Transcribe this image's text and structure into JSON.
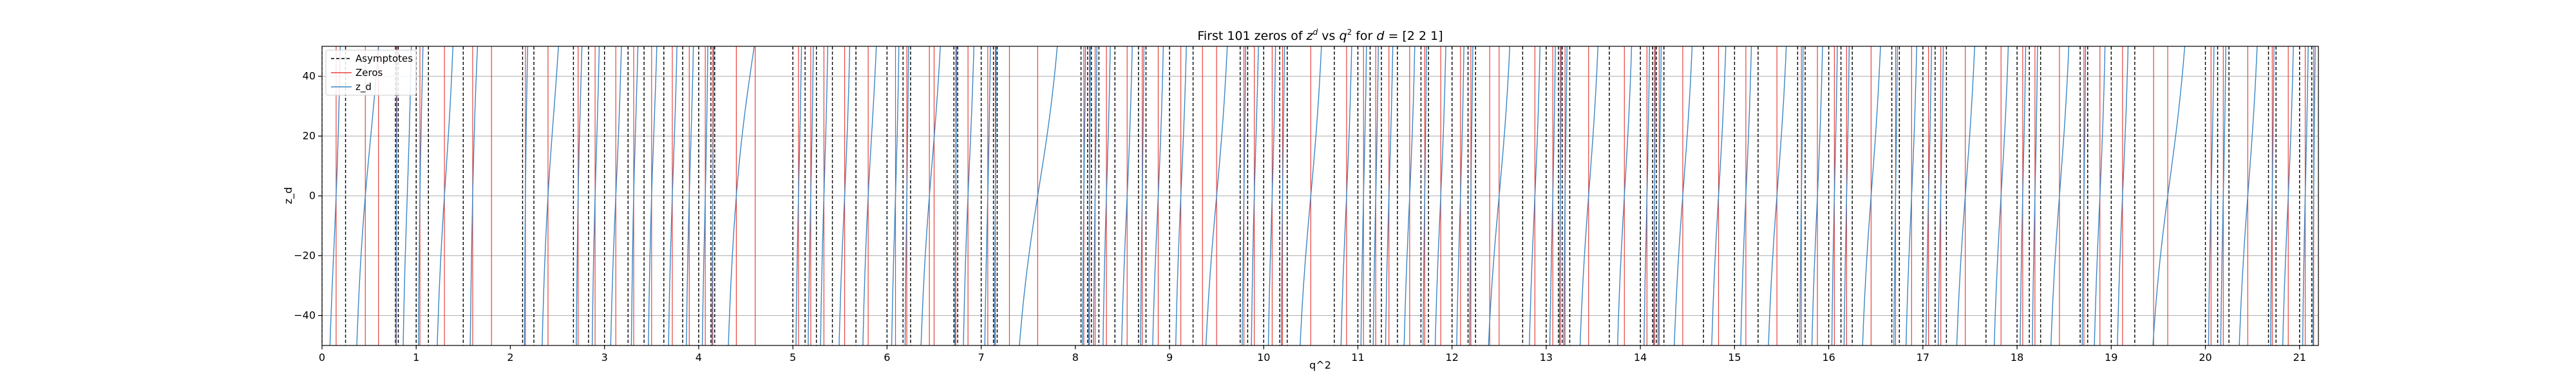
{
  "chart_data": {
    "type": "line",
    "title_parts": [
      "First 101 zeros of ",
      "z",
      "d",
      " vs ",
      "q",
      "2",
      " for ",
      "d",
      " = [2 2 1]"
    ],
    "xlabel": "q^2",
    "ylabel": "z_d",
    "xlim": [
      0,
      21.2
    ],
    "ylim": [
      -50,
      50
    ],
    "xticks": [
      0,
      1,
      2,
      3,
      4,
      5,
      6,
      7,
      8,
      9,
      10,
      11,
      12,
      13,
      14,
      15,
      16,
      17,
      18,
      19,
      20,
      21
    ],
    "yticks": [
      -40,
      -20,
      0,
      20,
      40
    ],
    "grid": true,
    "legend_position": "top-left",
    "legend": [
      {
        "label": "Asymptotes",
        "style": "dashed",
        "color": "#000000"
      },
      {
        "label": "Zeros",
        "style": "solid",
        "color": "#e8413b"
      },
      {
        "label": "z_d",
        "style": "solid",
        "color": "#3b86c4"
      }
    ],
    "asymptotes": [
      0,
      0.25,
      0.78,
      0.81,
      1.0,
      1.13,
      1.5,
      2.13,
      2.25,
      2.67,
      2.83,
      3.0,
      3.25,
      3.42,
      3.63,
      3.83,
      4.0,
      4.13,
      4.17,
      5.0,
      5.13,
      5.25,
      5.42,
      5.67,
      6.0,
      6.17,
      6.25,
      6.71,
      6.75,
      7.0,
      7.13,
      7.17,
      8.06,
      8.13,
      8.17,
      8.25,
      8.42,
      8.67,
      8.75,
      9.0,
      9.25,
      9.75,
      9.83,
      10.0,
      10.17,
      10.25,
      10.75,
      11.0,
      11.13,
      11.25,
      11.42,
      11.67,
      11.75,
      12.0,
      12.17,
      12.25,
      12.75,
      13.0,
      13.13,
      13.17,
      13.25,
      13.67,
      14.0,
      14.13,
      14.17,
      14.25,
      14.67,
      15.0,
      15.25,
      15.67,
      15.75,
      16.0,
      16.13,
      16.25,
      16.67,
      16.75,
      17.0,
      17.13,
      17.25,
      17.67,
      18.0,
      18.13,
      18.25,
      18.67,
      18.75,
      19.0,
      19.25,
      20.0,
      20.13,
      20.25,
      20.67,
      20.75,
      21.0,
      21.13
    ],
    "zeros": [
      0.15,
      0.46,
      0.79,
      1.04,
      1.3,
      1.6,
      2.16,
      2.4,
      2.72,
      2.9,
      3.12,
      3.31,
      3.5,
      3.72,
      3.9,
      4.07,
      4.15,
      4.4,
      5.06,
      5.19,
      5.33,
      5.55,
      5.8,
      6.09,
      6.21,
      6.45,
      6.73,
      6.86,
      7.07,
      7.15,
      7.6,
      8.09,
      8.15,
      8.21,
      8.33,
      8.55,
      8.71,
      8.88,
      9.12,
      9.5,
      9.79,
      9.9,
      10.09,
      10.2,
      10.5,
      10.88,
      11.06,
      11.19,
      11.33,
      11.55,
      11.71,
      11.88,
      12.09,
      12.2,
      12.5,
      12.88,
      13.07,
      13.15,
      13.2,
      13.45,
      13.83,
      14.07,
      14.15,
      14.2,
      14.45,
      14.83,
      15.12,
      15.45,
      15.71,
      15.88,
      16.06,
      16.19,
      16.45,
      16.71,
      16.88,
      17.06,
      17.19,
      17.45,
      17.83,
      18.06,
      18.19,
      18.45,
      18.71,
      18.88,
      19.12,
      19.6,
      20.06,
      20.19,
      20.45,
      20.71,
      20.88,
      21.06,
      21.15,
      0.6,
      1.8,
      4.6,
      6.5,
      7.3,
      9.35,
      12.4,
      19.45
    ]
  }
}
